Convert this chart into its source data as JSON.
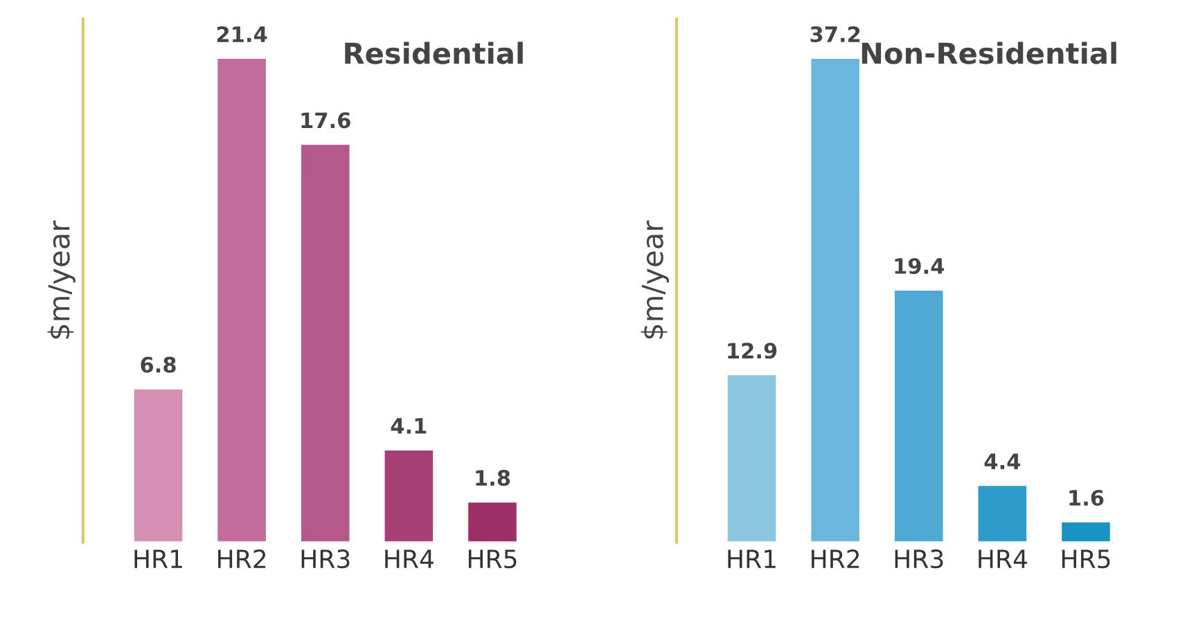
{
  "chart_data": [
    {
      "type": "bar",
      "title": "Residential",
      "ylabel": "$m/year",
      "categories": [
        "HR1",
        "HR2",
        "HR3",
        "HR4",
        "HR5"
      ],
      "values": [
        6.8,
        21.4,
        17.6,
        4.1,
        1.8
      ],
      "colors": [
        "#d390b4",
        "#c46c9c",
        "#b5588a",
        "#a53f74",
        "#9e2f66"
      ],
      "data_labels": true,
      "grid": false,
      "legend": false
    },
    {
      "type": "bar",
      "title": "Non-Residential",
      "ylabel": "$m/year",
      "categories": [
        "HR1",
        "HR2",
        "HR3",
        "HR4",
        "HR5"
      ],
      "values": [
        12.9,
        37.2,
        19.4,
        4.4,
        1.6
      ],
      "colors": [
        "#8cc6e0",
        "#6ab7db",
        "#4eaad5",
        "#2f9bca",
        "#1a92c4"
      ],
      "data_labels": true,
      "grid": false,
      "legend": false
    }
  ]
}
